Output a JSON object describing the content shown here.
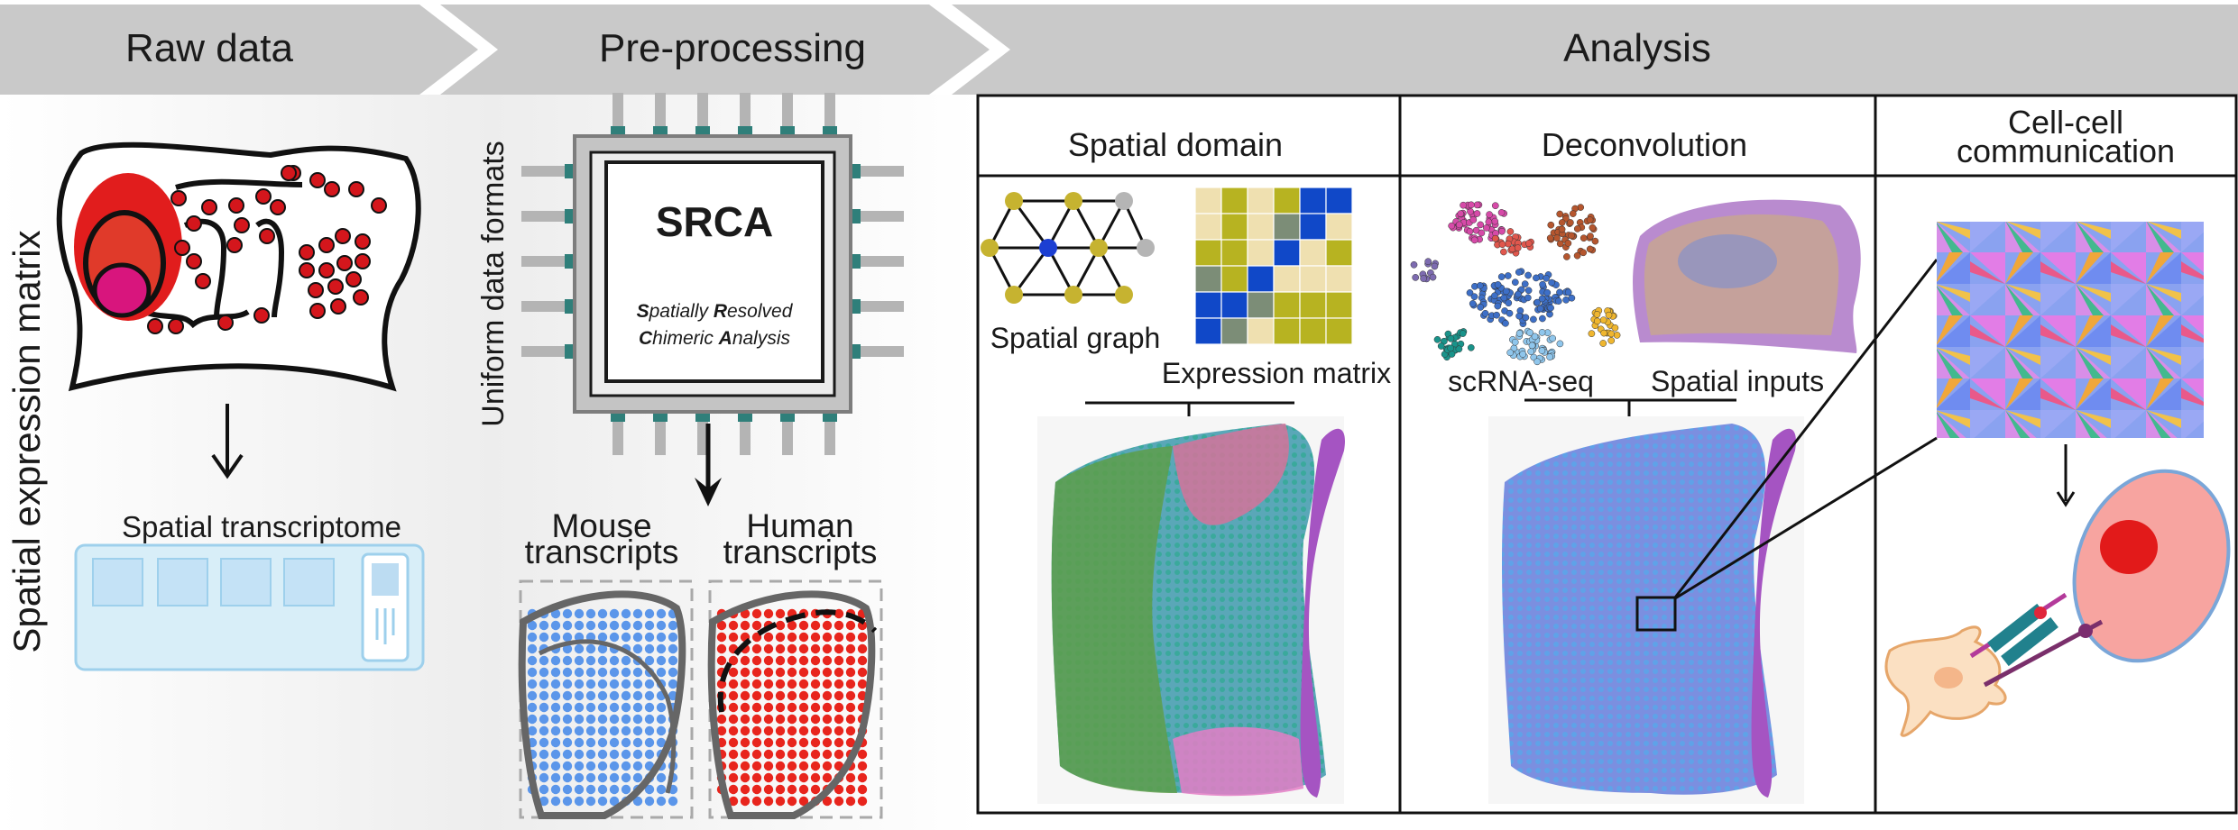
{
  "stages": {
    "raw_data": "Raw data",
    "preprocessing": "Pre-processing",
    "analysis": "Analysis"
  },
  "raw": {
    "side_label": "Spatial expression matrix",
    "transcriptome_label": "Spatial transcriptome"
  },
  "prep": {
    "side_label": "Uniform data formats",
    "chip_title": "SRCA",
    "chip_line1_b1": "S",
    "chip_line1_r1": "patially ",
    "chip_line1_b2": "R",
    "chip_line1_r2": "esolved",
    "chip_line2_b1": "C",
    "chip_line2_r1": "himeric ",
    "chip_line2_b2": "A",
    "chip_line2_r2": "nalysis",
    "mouse_line1": "Mouse",
    "mouse_line2": "transcripts",
    "human_line1": "Human",
    "human_line2": "transcripts"
  },
  "analysis": {
    "spatial_domain": {
      "title": "Spatial domain",
      "graph_label": "Spatial graph",
      "matrix_label": "Expression matrix"
    },
    "deconvolution": {
      "title": "Deconvolution",
      "scrna_label": "scRNA-seq",
      "spatial_label": "Spatial inputs"
    },
    "ccc": {
      "title_line1": "Cell-cell",
      "title_line2": "communication"
    }
  },
  "colors": {
    "banner": "#c9c9c9",
    "red_dot": "#d4161c",
    "mouse_blue": "#5b96ea",
    "human_red": "#e8251d",
    "matrix_olive": "#b7b321",
    "matrix_cream": "#efe0b0",
    "matrix_blue": "#1048c8",
    "matrix_gray": "#7c8d77",
    "cell_pink": "#f7a4a0",
    "nucleus_red": "#e21a1a"
  }
}
